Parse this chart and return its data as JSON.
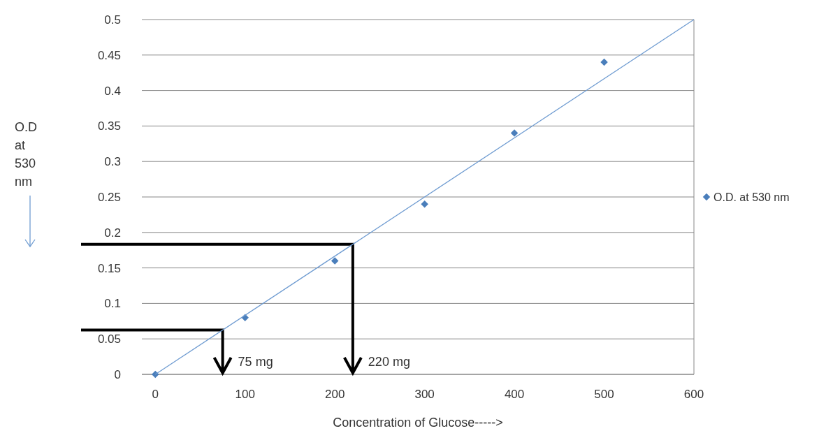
{
  "chart_data": {
    "type": "scatter",
    "xlabel": "Concentration of Glucose----->",
    "xlim": [
      -15,
      600
    ],
    "xticks": [
      0,
      100,
      200,
      300,
      400,
      500,
      600
    ],
    "ylim": [
      0,
      0.5
    ],
    "yticks": [
      0,
      0.05,
      0.1,
      0.15,
      0.2,
      0.25,
      0.3,
      0.35,
      0.4,
      0.45,
      0.5
    ],
    "grid": "y",
    "legend": "right",
    "marker": "diamond",
    "series": [
      {
        "name": "O.D. at 530 nm",
        "color": "#4a7ebb",
        "x": [
          0,
          100,
          200,
          300,
          400,
          500
        ],
        "values": [
          0,
          0.08,
          0.16,
          0.24,
          0.34,
          0.44
        ]
      },
      {
        "type": "line",
        "marker": "none",
        "color": "#6e9bd1",
        "x": [
          0,
          600
        ],
        "values": [
          0,
          0.5
        ]
      }
    ],
    "ref_lines": [
      {
        "axis": "x",
        "value": 75,
        "label": "75 mg",
        "color": "#000000"
      },
      {
        "axis": "x",
        "value": 220,
        "label": "220 mg",
        "color": "#000000"
      }
    ],
    "annotations": [
      "O.D at 530 nm"
    ]
  }
}
